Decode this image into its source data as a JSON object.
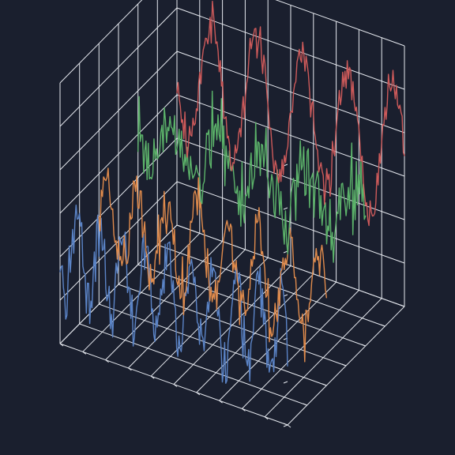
{
  "chart_data": {
    "type": "line3d",
    "title": "",
    "xlabel": "",
    "ylabel": "",
    "zlabel": "",
    "background": "#1a1f2e",
    "grid": true,
    "grid_color": "#e6e9ef",
    "legend": false,
    "x": {
      "lim": [
        0,
        10
      ],
      "ticks": [
        0,
        1,
        2,
        3,
        4,
        5,
        6,
        7,
        8,
        9,
        10
      ]
    },
    "y": {
      "lim": [
        0,
        3
      ],
      "ticks": [
        0,
        0.5,
        1,
        1.5,
        2,
        2.5,
        3
      ]
    },
    "z": {
      "lim": [
        -2,
        4
      ],
      "ticks": [
        -2,
        -1,
        0,
        1,
        2,
        3,
        4
      ]
    },
    "series": [
      {
        "color": "#5b84c7",
        "y": 0,
        "samples": 200,
        "x_range": [
          0,
          10
        ],
        "signal": {
          "offset": 0,
          "amplitude": 1,
          "frequency": 1.0,
          "noise": 0.35
        }
      },
      {
        "color": "#e08b4c",
        "y": 1,
        "samples": 200,
        "x_range": [
          0,
          10
        ],
        "signal": {
          "offset": 0,
          "amplitude": 1,
          "frequency": 0.75,
          "noise": 0.3
        }
      },
      {
        "color": "#5cb36a",
        "y": 2,
        "samples": 200,
        "x_range": [
          0,
          10
        ],
        "signal": {
          "offset": 1,
          "amplitude": 0.6,
          "frequency": 0.5,
          "noise": 0.45
        }
      },
      {
        "color": "#cd5a5a",
        "y": 3,
        "samples": 200,
        "x_range": [
          0,
          10
        ],
        "signal": {
          "offset": 1.5,
          "amplitude": 1.5,
          "frequency": 0.5,
          "noise": 0.25
        }
      }
    ]
  }
}
